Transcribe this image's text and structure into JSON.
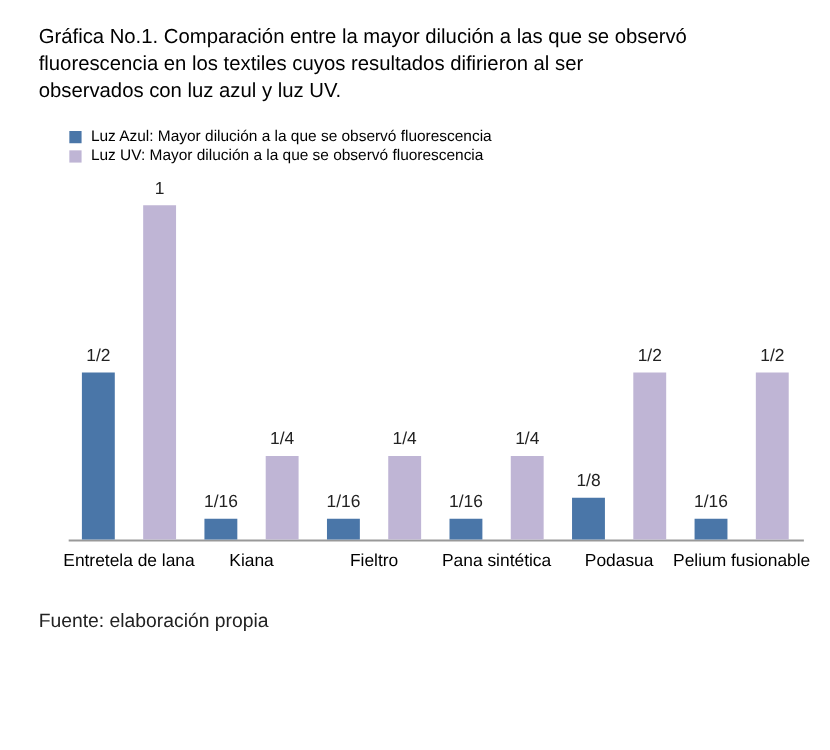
{
  "chart_data": {
    "type": "bar",
    "title": "Gráfica No.1. Comparación entre la mayor dilución a las que se observó fluorescencia en los textiles cuyos resultados difirieron al ser observados con luz azul y luz UV.",
    "categories": [
      "Entretela de lana",
      "Kiana",
      "Fieltro",
      "Pana sintética",
      "Podasua",
      "Pelium fusionable"
    ],
    "series": [
      {
        "name": "Luz Azul: Mayor dilución a la que se observó fluorescencia",
        "color": "#4a76a8",
        "values": [
          0.5,
          0.0625,
          0.0625,
          0.0625,
          0.125,
          0.0625
        ],
        "value_labels": [
          "1/2",
          "1/16",
          "1/16",
          "1/16",
          "1/8",
          "1/16"
        ]
      },
      {
        "name": "Luz UV: Mayor dilución a la que se observó fluorescencia",
        "color": "#bfb5d5",
        "values": [
          1,
          0.25,
          0.25,
          0.25,
          0.5,
          0.5
        ],
        "value_labels": [
          "1",
          "1/4",
          "1/4",
          "1/4",
          "1/2",
          "1/2"
        ]
      }
    ],
    "legend": "top left",
    "grid": false,
    "annotations": [
      "Fuente: elaboración propia"
    ]
  }
}
